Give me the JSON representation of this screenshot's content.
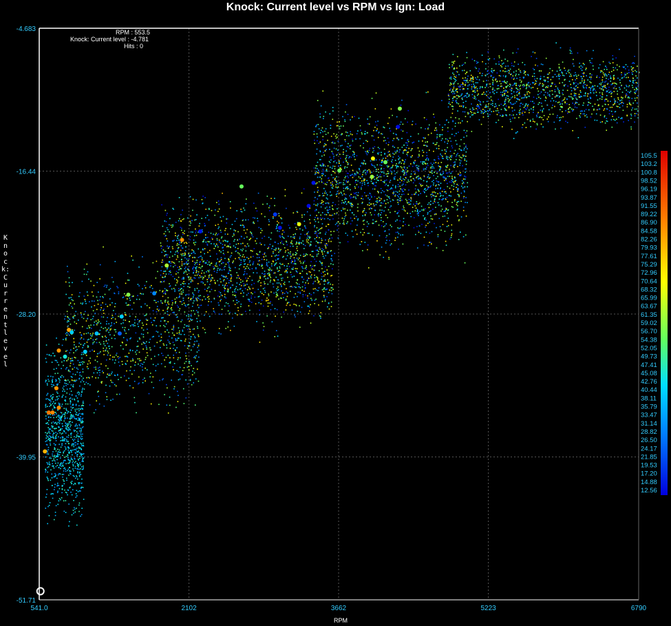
{
  "chart_data": {
    "type": "scatter",
    "title": "Knock: Current level vs RPM vs Ign: Load",
    "xlabel": "RPM",
    "ylabel": "Knock: Current level",
    "xlim": [
      541.0,
      6790
    ],
    "ylim": [
      -51.71,
      -4.683
    ],
    "x_ticks": [
      "541.0",
      "2102",
      "3662",
      "5223",
      "6790"
    ],
    "y_ticks": [
      "-4.683",
      "-16.44",
      "-28.20",
      "-39.95",
      "-51.71"
    ],
    "grid": true,
    "color_scale": {
      "label": "Ign: Load",
      "ticks": [
        "105.5",
        "103.2",
        "100.8",
        "98.52",
        "96.19",
        "93.87",
        "91.55",
        "89.22",
        "86.90",
        "84.58",
        "82.26",
        "79.93",
        "77.61",
        "75.29",
        "72.96",
        "70.64",
        "68.32",
        "65.99",
        "63.67",
        "61.35",
        "59.02",
        "56.70",
        "54.38",
        "52.05",
        "49.73",
        "47.41",
        "45.08",
        "42.76",
        "40.44",
        "38.11",
        "35.79",
        "33.47",
        "31.14",
        "28.82",
        "26.50",
        "24.17",
        "21.85",
        "19.53",
        "17.20",
        "14.88",
        "12.56"
      ],
      "min": 12.56,
      "max": 105.5
    },
    "highlighted_points": [
      {
        "x": 600,
        "y": -39.5,
        "load": 80
      },
      {
        "x": 640,
        "y": -36.3,
        "load": 88
      },
      {
        "x": 680,
        "y": -36.3,
        "load": 86
      },
      {
        "x": 745,
        "y": -35.9,
        "load": 85
      },
      {
        "x": 720,
        "y": -34.3,
        "load": 84
      },
      {
        "x": 745,
        "y": -31.2,
        "load": 84
      },
      {
        "x": 810,
        "y": -31.7,
        "load": 45
      },
      {
        "x": 850,
        "y": -29.5,
        "load": 82
      },
      {
        "x": 880,
        "y": -29.7,
        "load": 40
      },
      {
        "x": 1020,
        "y": -31.3,
        "load": 40
      },
      {
        "x": 1140,
        "y": -29.8,
        "load": 38
      },
      {
        "x": 1380,
        "y": -29.8,
        "load": 25
      },
      {
        "x": 1400,
        "y": -28.4,
        "load": 40
      },
      {
        "x": 1470,
        "y": -26.6,
        "load": 58
      },
      {
        "x": 1740,
        "y": -26.5,
        "load": 30
      },
      {
        "x": 1870,
        "y": -24.2,
        "load": 62
      },
      {
        "x": 2030,
        "y": -22.1,
        "load": 85
      },
      {
        "x": 2220,
        "y": -21.4,
        "load": 15
      },
      {
        "x": 2650,
        "y": -17.7,
        "load": 55
      },
      {
        "x": 3000,
        "y": -20.0,
        "load": 20
      },
      {
        "x": 3050,
        "y": -21.1,
        "load": 15
      },
      {
        "x": 3250,
        "y": -20.8,
        "load": 68
      },
      {
        "x": 3350,
        "y": -19.3,
        "load": 14
      },
      {
        "x": 3400,
        "y": -17.4,
        "load": 15
      },
      {
        "x": 3670,
        "y": -16.4,
        "load": 55
      },
      {
        "x": 4020,
        "y": -15.4,
        "load": 70
      },
      {
        "x": 4010,
        "y": -16.9,
        "load": 60
      },
      {
        "x": 4150,
        "y": -15.7,
        "load": 55
      },
      {
        "x": 4300,
        "y": -11.3,
        "load": 58
      },
      {
        "x": 4280,
        "y": -12.8,
        "load": 14
      }
    ],
    "density_bands": [
      {
        "xmin": 600,
        "xmax": 1000,
        "ymin": -47.0,
        "ymax": -29.0,
        "count": 900,
        "load_min": 30,
        "load_max": 50
      },
      {
        "xmin": 800,
        "xmax": 2200,
        "ymin": -38.0,
        "ymax": -22.0,
        "count": 900,
        "load_min": 20,
        "load_max": 75
      },
      {
        "xmin": 1800,
        "xmax": 3600,
        "ymin": -31.0,
        "ymax": -17.0,
        "count": 1600,
        "load_min": 13,
        "load_max": 80
      },
      {
        "xmin": 3400,
        "xmax": 5000,
        "ymin": -25.0,
        "ymax": -9.0,
        "count": 1700,
        "load_min": 13,
        "load_max": 75
      },
      {
        "xmin": 4800,
        "xmax": 6790,
        "ymin": -14.0,
        "ymax": -5.5,
        "count": 1400,
        "load_min": 15,
        "load_max": 75
      }
    ],
    "readout": {
      "rpm_label": "RPM : 553.5",
      "knock_label": "Knock: Current level : -4.781",
      "hits_label": "Hits : 0"
    },
    "cursor_point": {
      "x": 553.5,
      "y": -51.0
    }
  }
}
